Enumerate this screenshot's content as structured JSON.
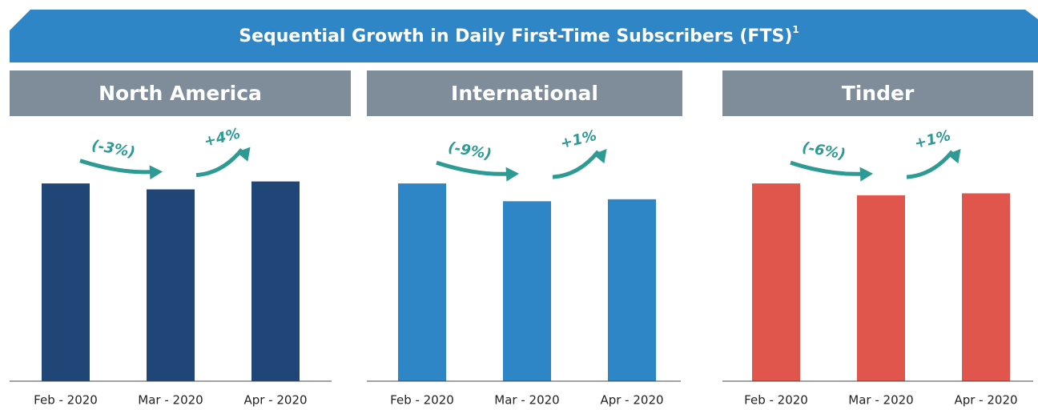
{
  "title": "Sequential Growth in Daily First-Time Subscribers (FTS)",
  "title_note": "1",
  "chart_data": [
    {
      "type": "bar",
      "title": "North America",
      "categories": [
        "Feb - 2020",
        "Mar - 2020",
        "Apr - 2020"
      ],
      "values": [
        100,
        97,
        101
      ],
      "color": "#1f4677",
      "ylim": [
        0,
        130
      ],
      "annotations": [
        "(-3%)",
        "+4%"
      ]
    },
    {
      "type": "bar",
      "title": "International",
      "categories": [
        "Feb - 2020",
        "Mar - 2020",
        "Apr - 2020"
      ],
      "values": [
        100,
        91,
        92
      ],
      "color": "#2e86c7",
      "ylim": [
        0,
        130
      ],
      "annotations": [
        "(-9%)",
        "+1%"
      ]
    },
    {
      "type": "bar",
      "title": "Tinder",
      "categories": [
        "Feb - 2020",
        "Mar - 2020",
        "Apr - 2020"
      ],
      "values": [
        100,
        94,
        95
      ],
      "color": "#e0564d",
      "ylim": [
        0,
        130
      ],
      "annotations": [
        "(-6%)",
        "+1%"
      ]
    }
  ]
}
